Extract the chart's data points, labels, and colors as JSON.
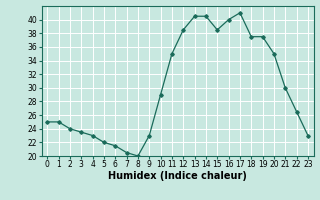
{
  "x": [
    0,
    1,
    2,
    3,
    4,
    5,
    6,
    7,
    8,
    9,
    10,
    11,
    12,
    13,
    14,
    15,
    16,
    17,
    18,
    19,
    20,
    21,
    22,
    23
  ],
  "y": [
    25,
    25,
    24,
    23.5,
    23,
    22,
    21.5,
    20.5,
    20,
    23,
    29,
    35,
    38.5,
    40.5,
    40.5,
    38.5,
    40,
    41,
    37.5,
    37.5,
    35,
    30,
    26.5,
    23
  ],
  "line_color": "#1a6b5a",
  "marker": "D",
  "marker_size": 1.8,
  "bg_color": "#c8e8e0",
  "grid_color": "#ffffff",
  "xlabel": "Humidex (Indice chaleur)",
  "xlim": [
    -0.5,
    23.5
  ],
  "ylim": [
    20,
    42
  ],
  "yticks": [
    20,
    22,
    24,
    26,
    28,
    30,
    32,
    34,
    36,
    38,
    40
  ],
  "xticks": [
    0,
    1,
    2,
    3,
    4,
    5,
    6,
    7,
    8,
    9,
    10,
    11,
    12,
    13,
    14,
    15,
    16,
    17,
    18,
    19,
    20,
    21,
    22,
    23
  ],
  "tick_labelsize": 5.5,
  "xlabel_fontsize": 7.0,
  "line_width": 0.9
}
